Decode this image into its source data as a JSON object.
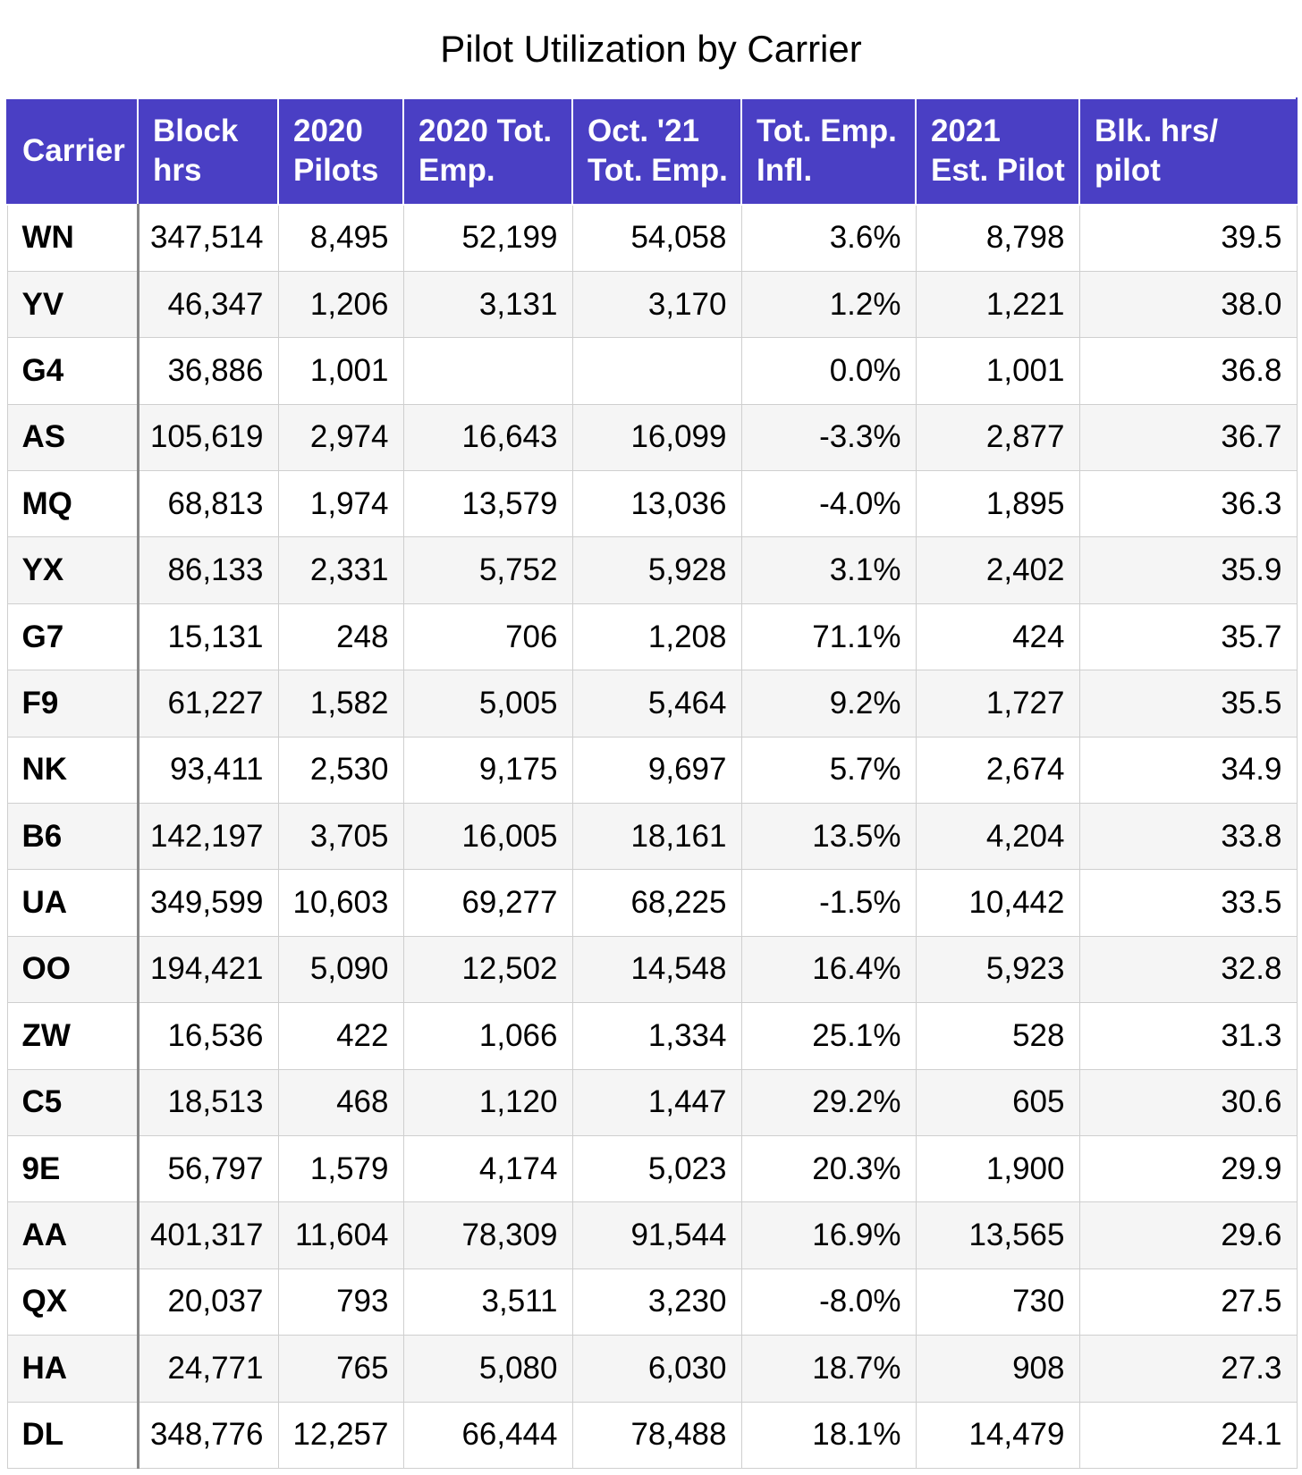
{
  "title": "Pilot Utilization by Carrier",
  "colors": {
    "header_background": "#4a3fc4",
    "header_text": "#ffffff",
    "row_stripe": "#f5f5f5",
    "grid_line": "#cfcfcf"
  },
  "chart_data": {
    "type": "table",
    "title": "Pilot Utilization by Carrier",
    "columns": [
      "Carrier",
      "Block hrs",
      "2020 Pilots",
      "2020 Tot. Emp.",
      "Oct. '21 Tot. Emp.",
      "Tot. Emp. Infl.",
      "2021 Est. Pilot",
      "Blk. hrs/ pilot"
    ],
    "rows": [
      [
        "WN",
        "347,514",
        "8,495",
        "52,199",
        "54,058",
        "3.6%",
        "8,798",
        "39.5"
      ],
      [
        "YV",
        "46,347",
        "1,206",
        "3,131",
        "3,170",
        "1.2%",
        "1,221",
        "38.0"
      ],
      [
        "G4",
        "36,886",
        "1,001",
        "",
        "",
        "0.0%",
        "1,001",
        "36.8"
      ],
      [
        "AS",
        "105,619",
        "2,974",
        "16,643",
        "16,099",
        "-3.3%",
        "2,877",
        "36.7"
      ],
      [
        "MQ",
        "68,813",
        "1,974",
        "13,579",
        "13,036",
        "-4.0%",
        "1,895",
        "36.3"
      ],
      [
        "YX",
        "86,133",
        "2,331",
        "5,752",
        "5,928",
        "3.1%",
        "2,402",
        "35.9"
      ],
      [
        "G7",
        "15,131",
        "248",
        "706",
        "1,208",
        "71.1%",
        "424",
        "35.7"
      ],
      [
        "F9",
        "61,227",
        "1,582",
        "5,005",
        "5,464",
        "9.2%",
        "1,727",
        "35.5"
      ],
      [
        "NK",
        "93,411",
        "2,530",
        "9,175",
        "9,697",
        "5.7%",
        "2,674",
        "34.9"
      ],
      [
        "B6",
        "142,197",
        "3,705",
        "16,005",
        "18,161",
        "13.5%",
        "4,204",
        "33.8"
      ],
      [
        "UA",
        "349,599",
        "10,603",
        "69,277",
        "68,225",
        "-1.5%",
        "10,442",
        "33.5"
      ],
      [
        "OO",
        "194,421",
        "5,090",
        "12,502",
        "14,548",
        "16.4%",
        "5,923",
        "32.8"
      ],
      [
        "ZW",
        "16,536",
        "422",
        "1,066",
        "1,334",
        "25.1%",
        "528",
        "31.3"
      ],
      [
        "C5",
        "18,513",
        "468",
        "1,120",
        "1,447",
        "29.2%",
        "605",
        "30.6"
      ],
      [
        "9E",
        "56,797",
        "1,579",
        "4,174",
        "5,023",
        "20.3%",
        "1,900",
        "29.9"
      ],
      [
        "AA",
        "401,317",
        "11,604",
        "78,309",
        "91,544",
        "16.9%",
        "13,565",
        "29.6"
      ],
      [
        "QX",
        "20,037",
        "793",
        "3,511",
        "3,230",
        "-8.0%",
        "730",
        "27.5"
      ],
      [
        "HA",
        "24,771",
        "765",
        "5,080",
        "6,030",
        "18.7%",
        "908",
        "27.3"
      ],
      [
        "DL",
        "348,776",
        "12,257",
        "66,444",
        "78,488",
        "18.1%",
        "14,479",
        "24.1"
      ]
    ]
  }
}
